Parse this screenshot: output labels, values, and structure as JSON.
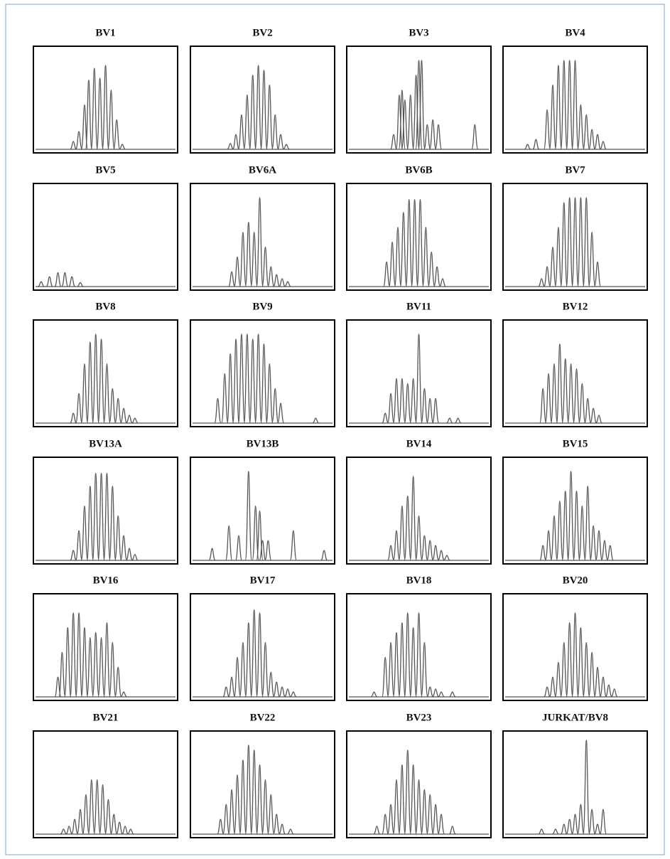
{
  "chart_data": [
    {
      "type": "line",
      "title": "BV1",
      "color": "#555555",
      "xlim": [
        0,
        100
      ],
      "ylim": [
        0,
        100
      ],
      "x": [
        27,
        31,
        35,
        38,
        42,
        46,
        50,
        54,
        58,
        62
      ],
      "values": [
        8,
        18,
        45,
        70,
        82,
        72,
        85,
        60,
        30,
        5
      ]
    },
    {
      "type": "line",
      "title": "BV2",
      "color": "#555555",
      "xlim": [
        0,
        100
      ],
      "ylim": [
        0,
        100
      ],
      "x": [
        27,
        31,
        35,
        39,
        43,
        47,
        51,
        55,
        59,
        63,
        67
      ],
      "values": [
        6,
        15,
        35,
        55,
        75,
        85,
        80,
        65,
        35,
        15,
        5
      ]
    },
    {
      "type": "line",
      "title": "BV3",
      "color": "#555555",
      "xlim": [
        0,
        100
      ],
      "ylim": [
        0,
        100
      ],
      "x": [
        32,
        36,
        38,
        40,
        44,
        48,
        50,
        52,
        56,
        60,
        64,
        90
      ],
      "values": [
        15,
        55,
        60,
        50,
        55,
        75,
        90,
        90,
        25,
        30,
        25,
        25
      ]
    },
    {
      "type": "line",
      "title": "BV4",
      "color": "#555555",
      "xlim": [
        0,
        100
      ],
      "ylim": [
        0,
        100
      ],
      "x": [
        16,
        22,
        30,
        34,
        38,
        42,
        46,
        50,
        54,
        58,
        62,
        66,
        70
      ],
      "values": [
        5,
        10,
        40,
        65,
        85,
        90,
        90,
        90,
        45,
        35,
        20,
        15,
        8
      ]
    },
    {
      "type": "line",
      "title": "BV5",
      "color": "#555555",
      "xlim": [
        0,
        100
      ],
      "ylim": [
        0,
        100
      ],
      "x": [
        4,
        10,
        16,
        21,
        26,
        32
      ],
      "values": [
        5,
        10,
        14,
        14,
        10,
        4
      ]
    },
    {
      "type": "line",
      "title": "BV6A",
      "color": "#555555",
      "xlim": [
        0,
        100
      ],
      "ylim": [
        0,
        100
      ],
      "x": [
        28,
        32,
        36,
        40,
        44,
        48,
        52,
        56,
        60,
        64,
        68
      ],
      "values": [
        15,
        30,
        55,
        65,
        55,
        90,
        40,
        20,
        12,
        8,
        5
      ]
    },
    {
      "type": "line",
      "title": "BV6B",
      "color": "#555555",
      "xlim": [
        0,
        100
      ],
      "ylim": [
        0,
        100
      ],
      "x": [
        27,
        31,
        35,
        39,
        43,
        47,
        51,
        55,
        59,
        63,
        67
      ],
      "values": [
        25,
        45,
        60,
        75,
        88,
        88,
        88,
        60,
        35,
        20,
        8
      ]
    },
    {
      "type": "line",
      "title": "BV7",
      "color": "#555555",
      "xlim": [
        0,
        100
      ],
      "ylim": [
        0,
        100
      ],
      "x": [
        26,
        30,
        34,
        38,
        42,
        46,
        50,
        54,
        58,
        62,
        66
      ],
      "values": [
        8,
        20,
        40,
        60,
        85,
        90,
        90,
        90,
        90,
        55,
        25
      ]
    },
    {
      "type": "line",
      "title": "BV8",
      "color": "#555555",
      "xlim": [
        0,
        100
      ],
      "ylim": [
        0,
        100
      ],
      "x": [
        27,
        31,
        35,
        39,
        43,
        47,
        51,
        55,
        59,
        63,
        67,
        71
      ],
      "values": [
        10,
        30,
        60,
        82,
        90,
        85,
        60,
        35,
        25,
        15,
        8,
        5
      ]
    },
    {
      "type": "line",
      "title": "BV9",
      "color": "#555555",
      "xlim": [
        0,
        100
      ],
      "ylim": [
        0,
        100
      ],
      "x": [
        18,
        23,
        27,
        31,
        35,
        39,
        43,
        47,
        51,
        55,
        59,
        63,
        88
      ],
      "values": [
        25,
        50,
        70,
        85,
        90,
        90,
        85,
        90,
        80,
        60,
        35,
        20,
        5
      ]
    },
    {
      "type": "line",
      "title": "BV11",
      "color": "#555555",
      "xlim": [
        0,
        100
      ],
      "ylim": [
        0,
        100
      ],
      "x": [
        26,
        30,
        34,
        38,
        42,
        46,
        50,
        54,
        58,
        62,
        72,
        78
      ],
      "values": [
        10,
        30,
        45,
        45,
        40,
        45,
        90,
        35,
        25,
        25,
        5,
        5
      ]
    },
    {
      "type": "line",
      "title": "BV12",
      "color": "#555555",
      "xlim": [
        0,
        100
      ],
      "ylim": [
        0,
        100
      ],
      "x": [
        27,
        31,
        35,
        39,
        43,
        47,
        51,
        55,
        59,
        63,
        67
      ],
      "values": [
        35,
        50,
        60,
        80,
        65,
        60,
        55,
        40,
        25,
        15,
        8
      ]
    },
    {
      "type": "line",
      "title": "BV13A",
      "color": "#555555",
      "xlim": [
        0,
        100
      ],
      "ylim": [
        0,
        100
      ],
      "x": [
        27,
        31,
        35,
        39,
        43,
        47,
        51,
        55,
        59,
        63,
        67,
        71
      ],
      "values": [
        10,
        30,
        55,
        75,
        88,
        88,
        88,
        75,
        45,
        25,
        12,
        6
      ]
    },
    {
      "type": "line",
      "title": "BV13B",
      "color": "#555555",
      "xlim": [
        0,
        100
      ],
      "ylim": [
        0,
        100
      ],
      "x": [
        14,
        26,
        33,
        40,
        45,
        48,
        50,
        54,
        72,
        94
      ],
      "values": [
        12,
        35,
        25,
        90,
        55,
        50,
        20,
        20,
        30,
        10
      ]
    },
    {
      "type": "line",
      "title": "BV14",
      "color": "#555555",
      "xlim": [
        0,
        100
      ],
      "ylim": [
        0,
        100
      ],
      "x": [
        30,
        34,
        38,
        42,
        46,
        50,
        54,
        58,
        62,
        66,
        70
      ],
      "values": [
        15,
        30,
        55,
        65,
        85,
        45,
        25,
        20,
        15,
        10,
        5
      ]
    },
    {
      "type": "line",
      "title": "BV15",
      "color": "#555555",
      "xlim": [
        0,
        100
      ],
      "ylim": [
        0,
        100
      ],
      "x": [
        27,
        31,
        35,
        39,
        43,
        47,
        51,
        55,
        59,
        63,
        67,
        71,
        75
      ],
      "values": [
        15,
        30,
        45,
        60,
        70,
        90,
        70,
        55,
        75,
        35,
        30,
        20,
        15
      ]
    },
    {
      "type": "line",
      "title": "BV16",
      "color": "#555555",
      "xlim": [
        0,
        100
      ],
      "ylim": [
        0,
        100
      ],
      "x": [
        16,
        19,
        23,
        27,
        31,
        35,
        39,
        43,
        47,
        51,
        55,
        59,
        63
      ],
      "values": [
        20,
        45,
        70,
        85,
        85,
        70,
        60,
        65,
        60,
        75,
        55,
        30,
        5
      ]
    },
    {
      "type": "line",
      "title": "BV17",
      "color": "#555555",
      "xlim": [
        0,
        100
      ],
      "ylim": [
        0,
        100
      ],
      "x": [
        24,
        28,
        32,
        36,
        40,
        44,
        48,
        52,
        56,
        60,
        64,
        68,
        72
      ],
      "values": [
        10,
        20,
        40,
        55,
        75,
        88,
        85,
        55,
        25,
        15,
        10,
        8,
        5
      ]
    },
    {
      "type": "line",
      "title": "BV18",
      "color": "#555555",
      "xlim": [
        0,
        100
      ],
      "ylim": [
        0,
        100
      ],
      "x": [
        18,
        26,
        30,
        34,
        38,
        42,
        46,
        50,
        54,
        58,
        62,
        66,
        74
      ],
      "values": [
        5,
        40,
        55,
        65,
        75,
        85,
        70,
        85,
        55,
        10,
        8,
        5,
        5
      ]
    },
    {
      "type": "line",
      "title": "BV20",
      "color": "#555555",
      "xlim": [
        0,
        100
      ],
      "ylim": [
        0,
        100
      ],
      "x": [
        30,
        34,
        38,
        42,
        46,
        50,
        54,
        58,
        62,
        66,
        70,
        74,
        78
      ],
      "values": [
        10,
        20,
        35,
        55,
        75,
        85,
        70,
        55,
        45,
        30,
        20,
        12,
        8
      ]
    },
    {
      "type": "line",
      "title": "BV21",
      "color": "#555555",
      "xlim": [
        0,
        100
      ],
      "ylim": [
        0,
        100
      ],
      "x": [
        20,
        24,
        28,
        32,
        36,
        40,
        44,
        48,
        52,
        56,
        60,
        64,
        68
      ],
      "values": [
        5,
        8,
        15,
        25,
        40,
        55,
        55,
        50,
        35,
        20,
        12,
        8,
        5
      ]
    },
    {
      "type": "line",
      "title": "BV22",
      "color": "#555555",
      "xlim": [
        0,
        100
      ],
      "ylim": [
        0,
        100
      ],
      "x": [
        20,
        24,
        28,
        32,
        36,
        40,
        44,
        48,
        52,
        56,
        60,
        64,
        70
      ],
      "values": [
        15,
        30,
        45,
        60,
        75,
        90,
        85,
        70,
        55,
        40,
        20,
        10,
        5
      ]
    },
    {
      "type": "line",
      "title": "BV23",
      "color": "#555555",
      "xlim": [
        0,
        100
      ],
      "ylim": [
        0,
        100
      ],
      "x": [
        20,
        26,
        30,
        34,
        38,
        42,
        46,
        50,
        54,
        58,
        62,
        66,
        74
      ],
      "values": [
        8,
        20,
        30,
        55,
        70,
        85,
        70,
        55,
        45,
        40,
        30,
        20,
        8
      ]
    },
    {
      "type": "line",
      "title": "JURKAT/BV8",
      "color": "#555555",
      "xlim": [
        0,
        100
      ],
      "ylim": [
        0,
        100
      ],
      "x": [
        26,
        36,
        42,
        46,
        50,
        54,
        58,
        62,
        66,
        70
      ],
      "values": [
        5,
        5,
        10,
        15,
        20,
        30,
        95,
        25,
        10,
        25
      ]
    }
  ]
}
